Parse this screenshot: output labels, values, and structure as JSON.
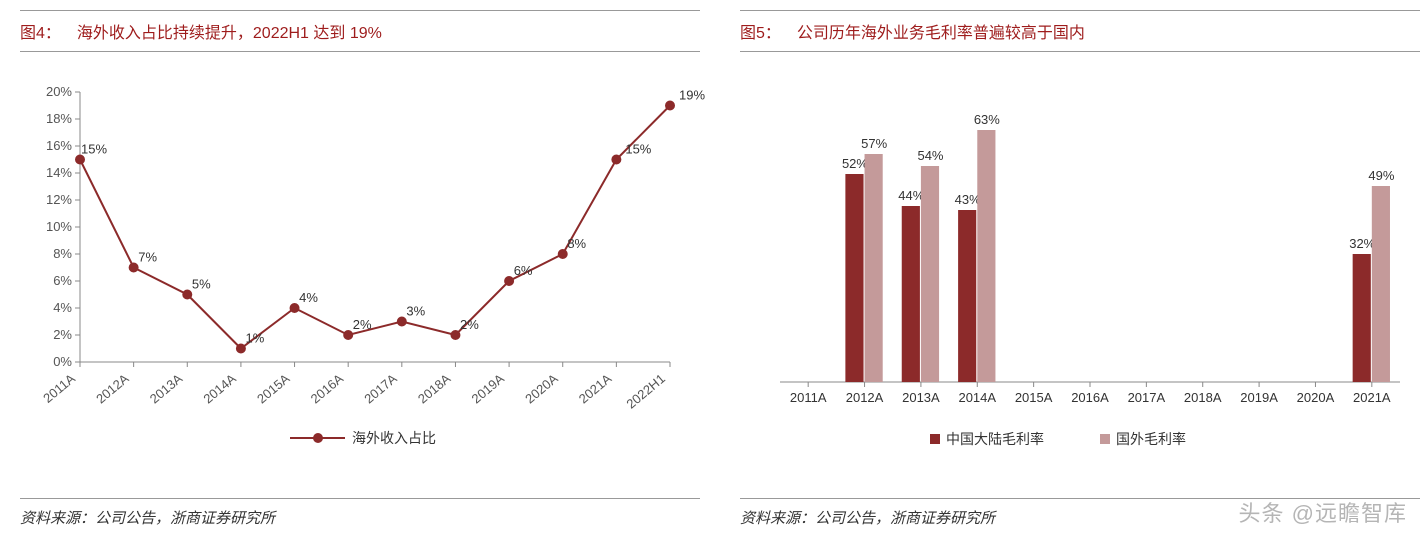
{
  "left": {
    "title_prefix": "图4：",
    "title": "海外收入占比持续提升，2022H1 达到 19%",
    "source": "资料来源：公司公告，浙商证券研究所",
    "chart": {
      "type": "line",
      "categories": [
        "2011A",
        "2012A",
        "2013A",
        "2014A",
        "2015A",
        "2016A",
        "2017A",
        "2018A",
        "2019A",
        "2020A",
        "2021A",
        "2022H1"
      ],
      "values": [
        15,
        7,
        5,
        1,
        4,
        2,
        3,
        2,
        6,
        8,
        15,
        19
      ],
      "value_labels": [
        "15%",
        "7%",
        "5%",
        "1%",
        "4%",
        "2%",
        "3%",
        "2%",
        "6%",
        "8%",
        "15%",
        "19%"
      ],
      "line_color": "#8c2a2a",
      "marker_color": "#8c2a2a",
      "marker_size": 5,
      "line_width": 2,
      "ylim": [
        0,
        20
      ],
      "ytick_step": 2,
      "y_format_suffix": "%",
      "legend_label": "海外收入占比",
      "label_fontsize": 13,
      "axis_color": "#888888",
      "text_color": "#555555",
      "background_color": "#ffffff"
    }
  },
  "right": {
    "title_prefix": "图5：",
    "title": "公司历年海外业务毛利率普遍较高于国内",
    "source": "资料来源：公司公告，浙商证券研究所",
    "chart": {
      "type": "bar",
      "categories": [
        "2011A",
        "2012A",
        "2013A",
        "2014A",
        "2015A",
        "2016A",
        "2017A",
        "2018A",
        "2019A",
        "2020A",
        "2021A"
      ],
      "series": [
        {
          "name": "中国大陆毛利率",
          "color": "#8c2a2a",
          "values": [
            null,
            52,
            44,
            43,
            null,
            null,
            null,
            null,
            null,
            null,
            32
          ]
        },
        {
          "name": "国外毛利率",
          "color": "#c49a9a",
          "values": [
            null,
            57,
            54,
            63,
            null,
            null,
            null,
            null,
            null,
            null,
            49
          ]
        }
      ],
      "value_labels_suffix": "%",
      "ylim": [
        0,
        70
      ],
      "bar_width": 0.34,
      "label_fontsize": 13,
      "axis_color": "#888888",
      "text_color": "#555555",
      "background_color": "#ffffff"
    }
  },
  "watermark": "头条 @远瞻智库"
}
